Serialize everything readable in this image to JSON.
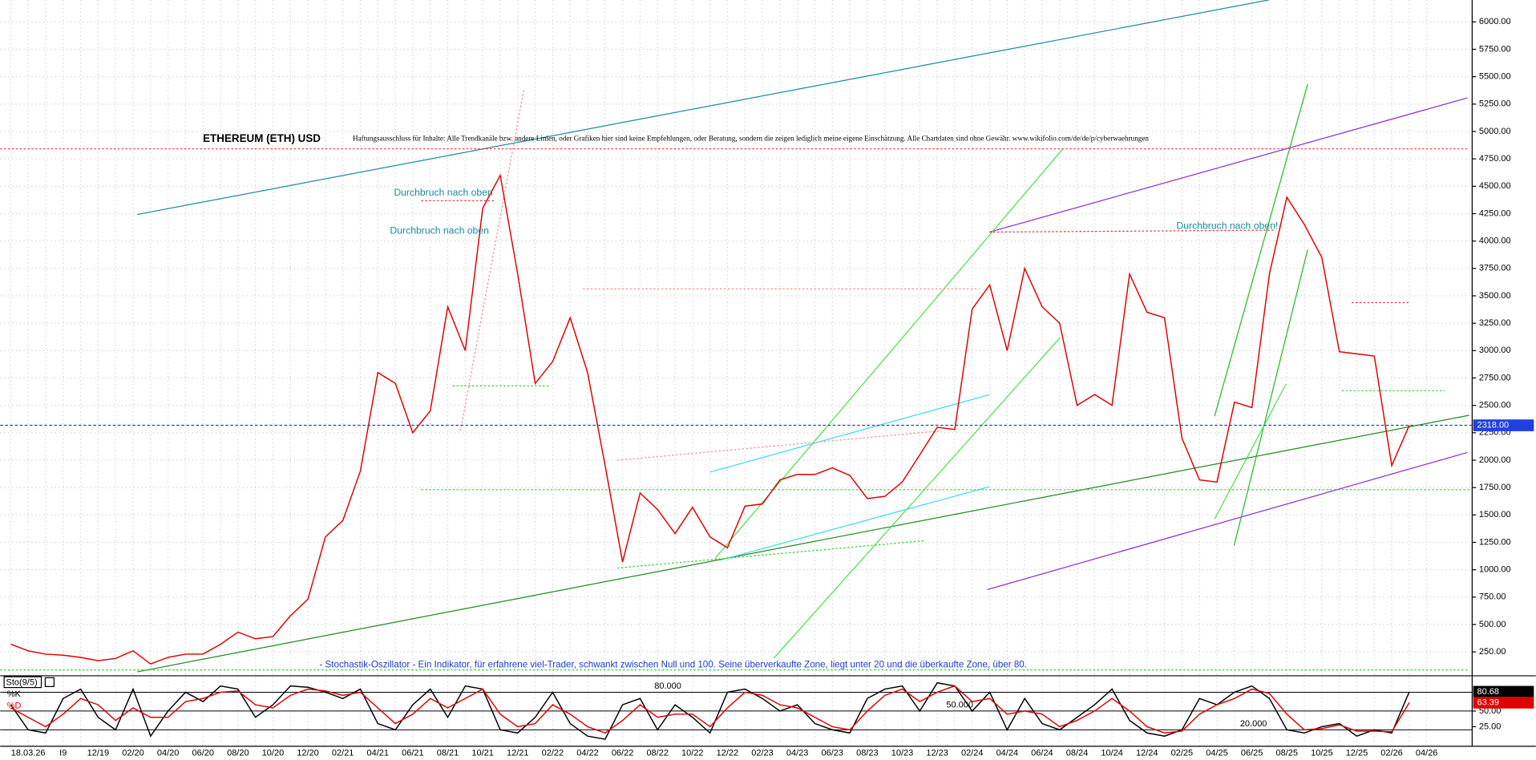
{
  "chart_data": [
    {
      "type": "line",
      "title": "ETHEREUM (ETH) USD",
      "disclaimer": "Haftungsausschluss für Inhalte: Alle Trendkanäle bzw. andere Linien, oder Grafiken hier sind keine Empfehlungen, oder Beratung, sondern die zeigen lediglich meine eigene Einschätzung. Alle Chartdaten sind ohne Gewähr.  www.wikifolio.com/de/de/p/cyberwaehrungen",
      "annotations": [
        "Durchbruch nach oben",
        "Durchbruch nach oben",
        "Durchbruch nach oben!",
        "- Stochastik-Oszillator - Ein Indikator, für erfahrene viel-Trader, schwankt zwischen Null und 100. Seine überverkaufte Zone, liegt unter 20 und die überkaufte Zone, über 80."
      ],
      "categories": [
        null,
        "18.03.26",
        null,
        "I9",
        null,
        "12/19",
        null,
        "02/20",
        null,
        "04/20",
        null,
        "06/20",
        null,
        "08/20",
        null,
        "10/20",
        null,
        "12/20",
        null,
        "02/21",
        null,
        "04/21",
        null,
        "06/21",
        null,
        "08/21",
        null,
        "10/21",
        null,
        "12/21",
        null,
        "02/22",
        null,
        "04/22",
        null,
        "06/22",
        null,
        "08/22",
        null,
        "10/22",
        null,
        "12/22",
        null,
        "02/23",
        null,
        "04/23",
        null,
        "06/23",
        null,
        "08/23",
        null,
        "10/23",
        null,
        "12/23",
        null,
        "02/24",
        null,
        "04/24",
        null,
        "06/24",
        null,
        "08/24",
        null,
        "10/24",
        null,
        "12/24",
        null,
        "02/25",
        null,
        "04/25",
        null,
        "06/25",
        null,
        "08/25",
        null,
        "10/25",
        null,
        "12/25",
        null,
        "02/26",
        null,
        "04/26"
      ],
      "series": [
        {
          "name": "ETH",
          "color": "#e00000",
          "values": [
            320,
            260,
            230,
            220,
            200,
            170,
            190,
            260,
            140,
            200,
            230,
            230,
            320,
            430,
            370,
            390,
            580,
            730,
            1300,
            1450,
            1900,
            2800,
            2700,
            2250,
            2450,
            3400,
            3000,
            4300,
            4600,
            3700,
            2700,
            2900,
            3300,
            2800,
            1950,
            1070,
            1700,
            1550,
            1330,
            1570,
            1300,
            1200,
            1580,
            1600,
            1820,
            1870,
            1870,
            1930,
            1860,
            1650,
            1670,
            1800,
            2050,
            2300,
            2280,
            3380,
            3600,
            3000,
            3750,
            3400,
            3250,
            2500,
            2600,
            2500,
            3700,
            3350,
            3300,
            2200,
            1820,
            1800,
            2530,
            2480,
            3700,
            4400,
            4150,
            3850,
            2990,
            2970,
            2950,
            1950,
            2318,
            null
          ]
        }
      ],
      "last_price": {
        "value": 2318,
        "label": "2318.00"
      },
      "ylim": [
        50,
        6200
      ],
      "yticks": [
        {
          "value": 250,
          "label": "250.00"
        },
        {
          "value": 500,
          "label": "500.00"
        },
        {
          "value": 750,
          "label": "750.00"
        },
        {
          "value": 1000,
          "label": "1000.00"
        },
        {
          "value": 1250,
          "label": "1250.00"
        },
        {
          "value": 1500,
          "label": "1500.00"
        },
        {
          "value": 1750,
          "label": "1750.00"
        },
        {
          "value": 2000,
          "label": "2000.00"
        },
        {
          "value": 2250,
          "label": "2250.00"
        },
        {
          "value": 2500,
          "label": "2500.00"
        },
        {
          "value": 2750,
          "label": "2750.00"
        },
        {
          "value": 3000,
          "label": "3000.00"
        },
        {
          "value": 3250,
          "label": "3250.00"
        },
        {
          "value": 3500,
          "label": "3500.00"
        },
        {
          "value": 3750,
          "label": "3750.00"
        },
        {
          "value": 4000,
          "label": "4000.00"
        },
        {
          "value": 4250,
          "label": "4250.00"
        },
        {
          "value": 4500,
          "label": "4500.00"
        },
        {
          "value": 4750,
          "label": "4750.00"
        },
        {
          "value": 5000,
          "label": "5000.00"
        },
        {
          "value": 5250,
          "label": "5250.00"
        },
        {
          "value": 5500,
          "label": "5500.00"
        },
        {
          "value": 5750,
          "label": "5750.00"
        },
        {
          "value": 6000,
          "label": "6000.00"
        }
      ],
      "grid": true
    },
    {
      "type": "line",
      "title": "Sto(9/5)",
      "series": [
        {
          "name": "%K",
          "color": "#000000",
          "values": [
            60,
            20,
            15,
            70,
            85,
            40,
            20,
            85,
            10,
            50,
            80,
            65,
            90,
            85,
            40,
            60,
            90,
            88,
            80,
            70,
            85,
            30,
            20,
            60,
            85,
            40,
            90,
            85,
            20,
            15,
            40,
            80,
            30,
            10,
            5,
            60,
            70,
            20,
            60,
            40,
            15,
            80,
            85,
            70,
            50,
            60,
            30,
            20,
            15,
            70,
            85,
            90,
            50,
            95,
            90,
            50,
            80,
            20,
            70,
            30,
            20,
            40,
            60,
            85,
            35,
            15,
            10,
            20,
            70,
            60,
            80,
            90,
            70,
            20,
            15,
            25,
            30,
            10,
            20,
            15,
            80.68,
            null
          ]
        },
        {
          "name": "%D",
          "color": "#e00000",
          "values": [
            55,
            40,
            25,
            45,
            70,
            60,
            35,
            55,
            40,
            40,
            65,
            70,
            80,
            82,
            60,
            55,
            75,
            85,
            82,
            75,
            80,
            55,
            30,
            45,
            70,
            55,
            70,
            85,
            45,
            25,
            30,
            60,
            45,
            25,
            15,
            35,
            60,
            40,
            45,
            45,
            25,
            55,
            80,
            75,
            60,
            55,
            40,
            25,
            20,
            50,
            75,
            85,
            65,
            80,
            90,
            65,
            70,
            45,
            50,
            45,
            25,
            35,
            50,
            70,
            50,
            25,
            15,
            18,
            45,
            60,
            70,
            85,
            78,
            45,
            20,
            22,
            28,
            18,
            18,
            17,
            63.39,
            null
          ]
        }
      ],
      "levels": [
        {
          "value": 80,
          "label": "80.000"
        },
        {
          "value": 50,
          "label": "50.000"
        },
        {
          "value": 20,
          "label": "20.000"
        }
      ],
      "ylim": [
        0,
        100
      ],
      "yticks": [
        {
          "value": 25,
          "label": "25.00"
        },
        {
          "value": 50,
          "label": "50.00"
        }
      ]
    }
  ]
}
